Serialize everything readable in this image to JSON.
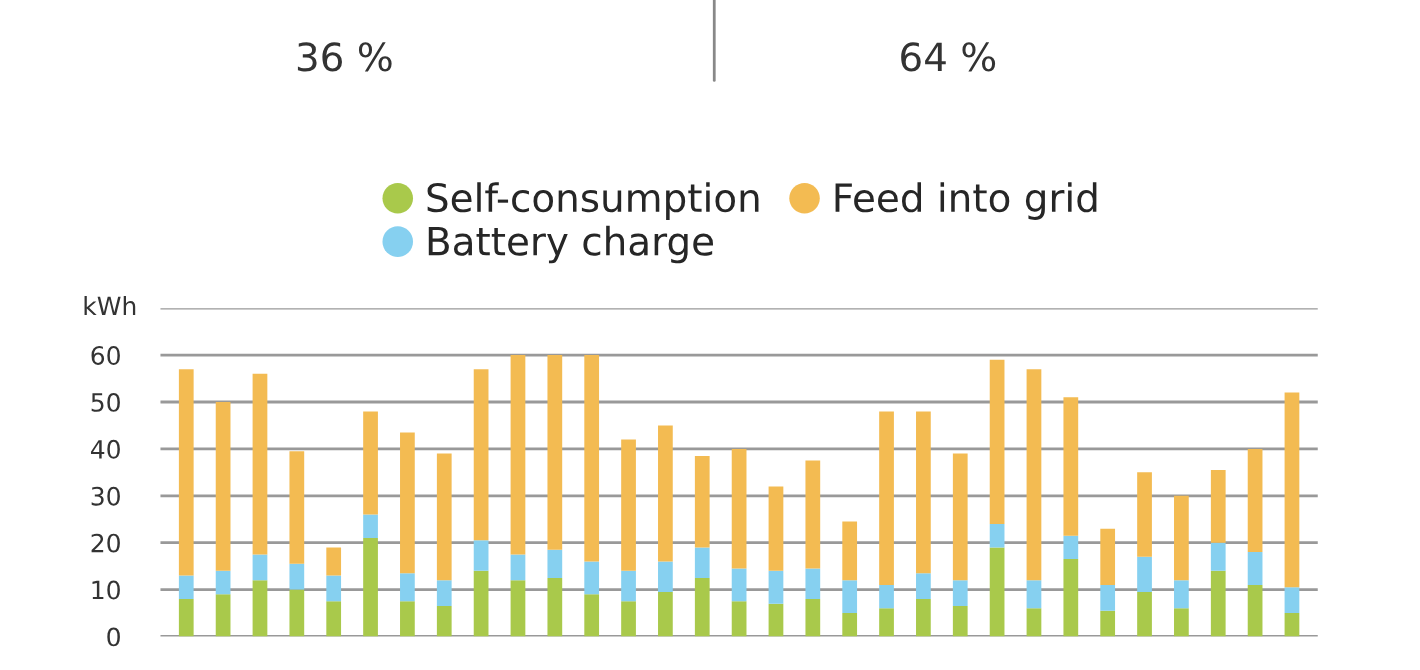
{
  "chart_data": {
    "type": "bar",
    "stacked": true,
    "categories": [
      null,
      null,
      null,
      null,
      null,
      null,
      null,
      null,
      null,
      null,
      null,
      null,
      null,
      null,
      null,
      null,
      null,
      null,
      null,
      null,
      null,
      null,
      null,
      null,
      null,
      null,
      null,
      null,
      null,
      null,
      null
    ],
    "series": [
      {
        "name": "Self-consumption",
        "color": "#a9c94b",
        "values": [
          8,
          9,
          12,
          10,
          7.5,
          21,
          7.5,
          6.5,
          14,
          12,
          12.5,
          9,
          7.5,
          9.5,
          12.5,
          7.5,
          7,
          8,
          5,
          6,
          8,
          6.5,
          19,
          6,
          16.5,
          5.5,
          9.5,
          6,
          14,
          11,
          5
        ]
      },
      {
        "name": "Battery charge",
        "color": "#86d0f0",
        "values": [
          5,
          5,
          5.5,
          5.5,
          5.5,
          5,
          6,
          5.5,
          6.5,
          5.5,
          6,
          7,
          6.5,
          6.5,
          6.5,
          7,
          7,
          6.5,
          7,
          5,
          5.5,
          5.5,
          5,
          6,
          5,
          5.5,
          7.5,
          6,
          6,
          7,
          5.5
        ]
      },
      {
        "name": "Feed into grid",
        "color": "#f3bb52",
        "values": [
          44,
          36,
          38.5,
          24,
          6,
          22,
          30,
          27,
          36.5,
          42.5,
          41.5,
          44,
          28,
          29,
          19.5,
          25.5,
          18,
          23,
          12.5,
          37,
          34.5,
          27,
          35,
          45,
          29.5,
          12,
          18,
          18,
          15.5,
          22,
          41.5
        ]
      }
    ],
    "ylabel": "kWh",
    "ylim": [
      0,
      70
    ],
    "yticks": [
      0,
      10,
      20,
      30,
      40,
      50,
      60,
      {
        "value": 70,
        "label": null
      }
    ],
    "grid": "y",
    "legend": "top",
    "annotations": [
      "36 %",
      "64 %"
    ]
  }
}
